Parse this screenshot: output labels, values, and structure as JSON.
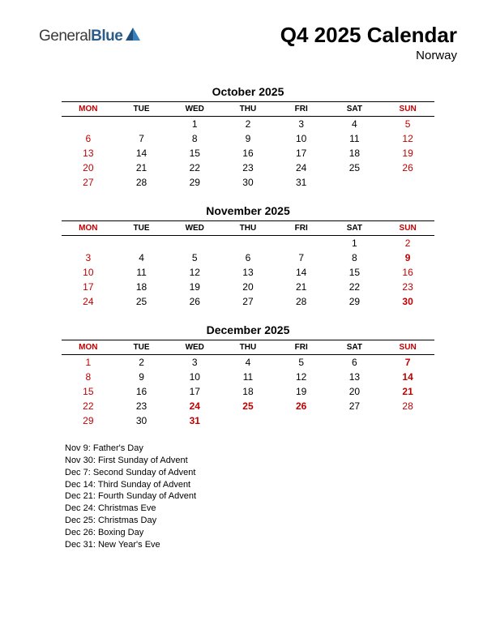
{
  "logo": {
    "general": "General",
    "blue": "Blue"
  },
  "title": "Q4 2025 Calendar",
  "subtitle": "Norway",
  "colors": {
    "red": "#c00000",
    "black": "#000000",
    "logo_blue": "#2b5c8a",
    "logo_shape_dark": "#1f4f7a",
    "logo_shape_light": "#3a80bd",
    "background": "#ffffff"
  },
  "day_headers": [
    "MON",
    "TUE",
    "WED",
    "THU",
    "FRI",
    "SAT",
    "SUN"
  ],
  "header_red_cols": [
    0,
    6
  ],
  "months": [
    {
      "title": "October 2025",
      "weeks": [
        [
          "",
          "",
          "1",
          "2",
          "3",
          "4",
          "5"
        ],
        [
          "6",
          "7",
          "8",
          "9",
          "10",
          "11",
          "12"
        ],
        [
          "13",
          "14",
          "15",
          "16",
          "17",
          "18",
          "19"
        ],
        [
          "20",
          "21",
          "22",
          "23",
          "24",
          "25",
          "26"
        ],
        [
          "27",
          "28",
          "29",
          "30",
          "31",
          "",
          ""
        ]
      ],
      "red": [
        [
          0,
          6
        ],
        [
          1,
          0
        ],
        [
          1,
          6
        ],
        [
          2,
          0
        ],
        [
          2,
          6
        ],
        [
          3,
          0
        ],
        [
          3,
          6
        ],
        [
          4,
          0
        ]
      ],
      "bold": []
    },
    {
      "title": "November 2025",
      "weeks": [
        [
          "",
          "",
          "",
          "",
          "",
          "1",
          "2"
        ],
        [
          "3",
          "4",
          "5",
          "6",
          "7",
          "8",
          "9"
        ],
        [
          "10",
          "11",
          "12",
          "13",
          "14",
          "15",
          "16"
        ],
        [
          "17",
          "18",
          "19",
          "20",
          "21",
          "22",
          "23"
        ],
        [
          "24",
          "25",
          "26",
          "27",
          "28",
          "29",
          "30"
        ]
      ],
      "red": [
        [
          0,
          6
        ],
        [
          1,
          0
        ],
        [
          1,
          6
        ],
        [
          2,
          0
        ],
        [
          2,
          6
        ],
        [
          3,
          0
        ],
        [
          3,
          6
        ],
        [
          4,
          0
        ],
        [
          4,
          6
        ]
      ],
      "bold": [
        [
          1,
          6
        ],
        [
          4,
          6
        ]
      ]
    },
    {
      "title": "December 2025",
      "weeks": [
        [
          "1",
          "2",
          "3",
          "4",
          "5",
          "6",
          "7"
        ],
        [
          "8",
          "9",
          "10",
          "11",
          "12",
          "13",
          "14"
        ],
        [
          "15",
          "16",
          "17",
          "18",
          "19",
          "20",
          "21"
        ],
        [
          "22",
          "23",
          "24",
          "25",
          "26",
          "27",
          "28"
        ],
        [
          "29",
          "30",
          "31",
          "",
          "",
          "",
          ""
        ]
      ],
      "red": [
        [
          0,
          0
        ],
        [
          0,
          6
        ],
        [
          1,
          0
        ],
        [
          1,
          6
        ],
        [
          2,
          0
        ],
        [
          2,
          6
        ],
        [
          3,
          0
        ],
        [
          3,
          2
        ],
        [
          3,
          3
        ],
        [
          3,
          4
        ],
        [
          3,
          6
        ],
        [
          4,
          0
        ],
        [
          4,
          2
        ]
      ],
      "bold": [
        [
          0,
          6
        ],
        [
          1,
          6
        ],
        [
          2,
          6
        ],
        [
          3,
          2
        ],
        [
          3,
          3
        ],
        [
          3,
          4
        ],
        [
          4,
          2
        ]
      ]
    }
  ],
  "holidays": [
    "Nov 9: Father's Day",
    "Nov 30: First Sunday of Advent",
    "Dec 7: Second Sunday of Advent",
    "Dec 14: Third Sunday of Advent",
    "Dec 21: Fourth Sunday of Advent",
    "Dec 24: Christmas Eve",
    "Dec 25: Christmas Day",
    "Dec 26: Boxing Day",
    "Dec 31: New Year's Eve"
  ]
}
